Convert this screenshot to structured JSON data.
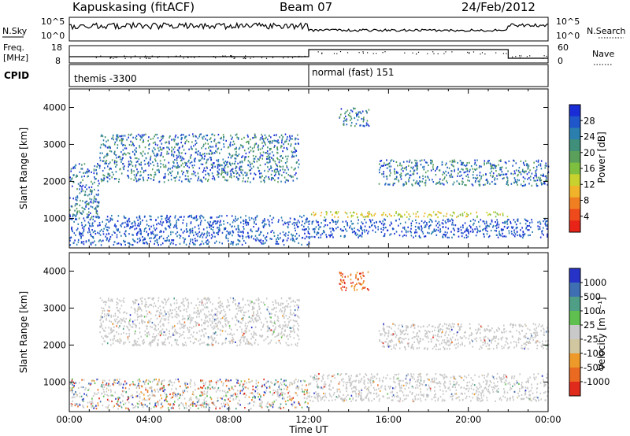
{
  "header": {
    "station": "Kapuskasing (fitACF)",
    "beam": "Beam 07",
    "date": "24/Feb/2012"
  },
  "summary": {
    "nsky_label": "N.Sky",
    "nsearch_label": "N.Search",
    "freq_label_1": "Freq.",
    "freq_label_2": "[MHz]",
    "nave_label": "Nave",
    "cpid_label": "CPID",
    "nsky_ticks": [
      "10^5",
      "10^0"
    ],
    "nsearch_ticks": [
      "10^5",
      "10^0"
    ],
    "freq_ticks": [
      "18",
      "8"
    ],
    "nave_ticks": [
      "60",
      "0"
    ],
    "cpid_segments": [
      {
        "label": "themis -3300",
        "start_hour": 0,
        "end_hour": 12
      },
      {
        "label": "normal (fast) 151",
        "start_hour": 12,
        "end_hour": 24
      }
    ]
  },
  "chart_data": [
    {
      "type": "heatmap",
      "name": "power",
      "ylabel": "Slant Range [km]",
      "xlabel": "Time UT",
      "xlim": [
        0,
        24
      ],
      "ylim": [
        200,
        4500
      ],
      "yticks": [
        "1000",
        "2000",
        "3000",
        "4000"
      ],
      "xticks": [
        "00:00",
        "04:00",
        "08:00",
        "12:00",
        "16:00",
        "20:00",
        "00:00"
      ],
      "colorbar": {
        "label": "Power [dB]",
        "ticks": [
          "4",
          "8",
          "12",
          "16",
          "20",
          "24",
          "28"
        ],
        "colors": [
          "#1a2cd6",
          "#1f56c9",
          "#2a7fae",
          "#3f8f7a",
          "#5a9f5a",
          "#7fbf3f",
          "#c8d22e",
          "#f0b32a",
          "#f07f22",
          "#ee4a1c",
          "#e82418"
        ]
      },
      "echo_regions": [
        {
          "t0": 0,
          "t1": 1.5,
          "r0": 1000,
          "r1": 2500,
          "level": "mid"
        },
        {
          "t0": 1.5,
          "t1": 11.5,
          "r0": 2000,
          "r1": 3300,
          "level": "mid"
        },
        {
          "t0": 0,
          "t1": 12,
          "r0": 300,
          "r1": 1100,
          "level": "low"
        },
        {
          "t0": 12,
          "t1": 22,
          "r0": 1050,
          "r1": 1200,
          "level": "high"
        },
        {
          "t0": 12,
          "t1": 24,
          "r0": 500,
          "r1": 1000,
          "level": "low"
        },
        {
          "t0": 15.5,
          "t1": 24,
          "r0": 1900,
          "r1": 2600,
          "level": "mid"
        },
        {
          "t0": 13.5,
          "t1": 15,
          "r0": 3500,
          "r1": 4000,
          "level": "mid"
        }
      ]
    },
    {
      "type": "heatmap",
      "name": "velocity",
      "ylabel": "Slant Range [km]",
      "xlabel": "Time UT",
      "xlim": [
        0,
        24
      ],
      "ylim": [
        200,
        4500
      ],
      "yticks": [
        "1000",
        "2000",
        "3000",
        "4000"
      ],
      "xticks": [
        "00:00",
        "04:00",
        "08:00",
        "12:00",
        "16:00",
        "20:00",
        "00:00"
      ],
      "colorbar": {
        "label": "Velocity [m s⁻¹]",
        "ticks": [
          "1000",
          "500",
          "100",
          "25",
          "-25",
          "-100",
          "-500",
          "-1000"
        ],
        "colors": [
          "#2733c7",
          "#3f6fb3",
          "#4f9f86",
          "#5fc04f",
          "#c9c9c9",
          "#d0c6a0",
          "#ee9a2a",
          "#ea6a22",
          "#e02a1c"
        ]
      },
      "echo_regions": [
        {
          "t0": 1.5,
          "t1": 11.5,
          "r0": 2000,
          "r1": 3300,
          "level": "ground"
        },
        {
          "t0": 0,
          "t1": 12,
          "r0": 300,
          "r1": 1100,
          "level": "mixed"
        },
        {
          "t0": 12,
          "t1": 24,
          "r0": 500,
          "r1": 1250,
          "level": "ground"
        },
        {
          "t0": 15.5,
          "t1": 24,
          "r0": 1900,
          "r1": 2600,
          "level": "ground"
        },
        {
          "t0": 13.5,
          "t1": 15,
          "r0": 3500,
          "r1": 4000,
          "level": "neg"
        }
      ]
    }
  ]
}
